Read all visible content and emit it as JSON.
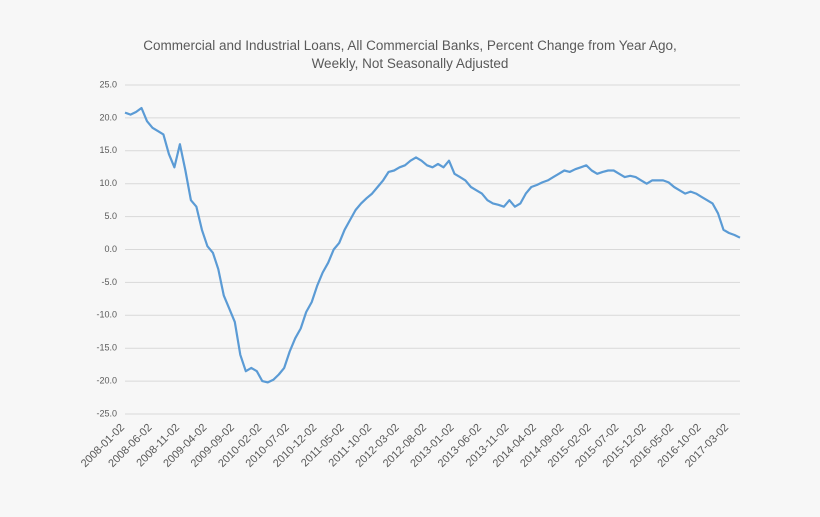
{
  "chart_data": {
    "type": "line",
    "title": [
      "Commercial and Industrial Loans, All Commercial Banks, Percent Change from Year Ago,",
      "Weekly, Not Seasonally Adjusted"
    ],
    "categories": [
      "2008-01-02",
      null,
      null,
      null,
      null,
      "2008-06-02",
      null,
      null,
      null,
      null,
      "2008-11-02",
      null,
      null,
      null,
      null,
      "2009-04-02",
      null,
      null,
      null,
      null,
      "2009-09-02",
      null,
      null,
      null,
      null,
      "2010-02-02",
      null,
      null,
      null,
      null,
      "2010-07-02",
      null,
      null,
      null,
      null,
      "2010-12-02",
      null,
      null,
      null,
      null,
      "2011-05-02",
      null,
      null,
      null,
      null,
      "2011-10-02",
      null,
      null,
      null,
      null,
      "2012-03-02",
      null,
      null,
      null,
      null,
      "2012-08-02",
      null,
      null,
      null,
      null,
      "2013-01-02",
      null,
      null,
      null,
      null,
      "2013-06-02",
      null,
      null,
      null,
      null,
      "2013-11-02",
      null,
      null,
      null,
      null,
      "2014-04-02",
      null,
      null,
      null,
      null,
      "2014-09-02",
      null,
      null,
      null,
      null,
      "2015-02-02",
      null,
      null,
      null,
      null,
      "2015-07-02",
      null,
      null,
      null,
      null,
      "2015-12-02",
      null,
      null,
      null,
      null,
      "2016-05-02",
      null,
      null,
      null,
      null,
      "2016-10-02",
      null,
      null,
      null,
      null,
      "2017-03-02",
      null,
      null
    ],
    "series": [
      {
        "name": "Percent Change from Year Ago",
        "color": "#5b9bd5",
        "values": [
          20.8,
          20.5,
          20.9,
          21.5,
          19.5,
          18.5,
          18.0,
          17.5,
          14.5,
          12.5,
          16.0,
          12.0,
          7.5,
          6.5,
          3.0,
          0.5,
          -0.5,
          -3.0,
          -7.0,
          -9.0,
          -11.0,
          -16.0,
          -18.5,
          -18.0,
          -18.5,
          -20.0,
          -20.2,
          -19.8,
          -19.0,
          -18.0,
          -15.5,
          -13.5,
          -12.0,
          -9.5,
          -8.0,
          -5.5,
          -3.5,
          -2.0,
          0.0,
          1.0,
          3.0,
          4.5,
          6.0,
          7.0,
          7.8,
          8.5,
          9.5,
          10.5,
          11.8,
          12.0,
          12.5,
          12.8,
          13.5,
          14.0,
          13.5,
          12.8,
          12.5,
          13.0,
          12.5,
          13.5,
          11.5,
          11.0,
          10.5,
          9.5,
          9.0,
          8.5,
          7.5,
          7.0,
          6.8,
          6.5,
          7.5,
          6.5,
          7.0,
          8.5,
          9.5,
          9.8,
          10.2,
          10.5,
          11.0,
          11.5,
          12.0,
          11.8,
          12.2,
          12.5,
          12.8,
          12.0,
          11.5,
          11.8,
          12.0,
          12.0,
          11.5,
          11.0,
          11.2,
          11.0,
          10.5,
          10.0,
          10.5,
          10.5,
          10.5,
          10.2,
          9.5,
          9.0,
          8.5,
          8.8,
          8.5,
          8.0,
          7.5,
          7.0,
          5.5,
          3.0,
          2.5,
          2.2,
          1.8
        ]
      }
    ],
    "ylim": [
      -25,
      25
    ],
    "yticks": [
      {
        "value": -25,
        "label": "-25.0"
      },
      {
        "value": -20,
        "label": "-20.0"
      },
      {
        "value": -15,
        "label": "-15.0"
      },
      {
        "value": -10,
        "label": "-10.0"
      },
      {
        "value": -5,
        "label": "-5.0"
      },
      {
        "value": 0,
        "label": "0.0"
      },
      {
        "value": 5,
        "label": "5.0"
      },
      {
        "value": 10,
        "label": "10.0"
      },
      {
        "value": 15,
        "label": "15.0"
      },
      {
        "value": 20,
        "label": "20.0"
      },
      {
        "value": 25,
        "label": "25.0"
      }
    ],
    "grid": true
  }
}
